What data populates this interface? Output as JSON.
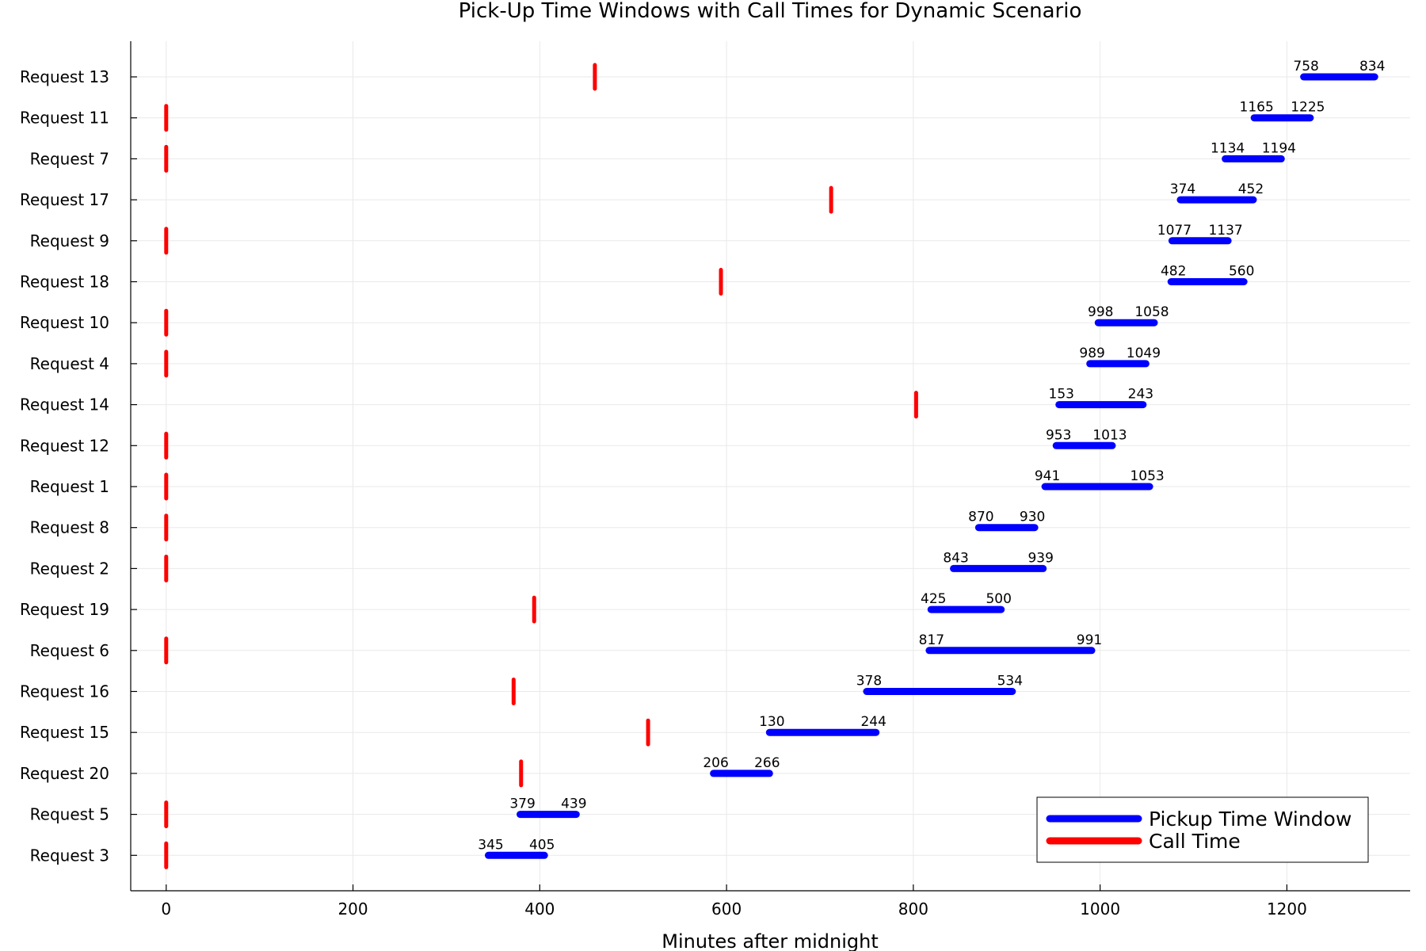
{
  "chart_data": {
    "type": "range-bar",
    "title": "Pick-Up Time Windows with Call Times for Dynamic Scenario",
    "xlabel": "Minutes after midnight",
    "xlim": [
      -38,
      1332
    ],
    "xticks": [
      0,
      200,
      400,
      600,
      800,
      1000,
      1200
    ],
    "grid": true,
    "legend_position": "bottom-right",
    "colors": {
      "window": "#0000ff",
      "call": "#ff0000"
    },
    "legend": [
      {
        "key": "window",
        "label": "Pickup Time Window"
      },
      {
        "key": "call",
        "label": "Call Time"
      }
    ],
    "requests": [
      {
        "label": "Request 13",
        "start": 1218,
        "end": 1294,
        "start_label": "758",
        "end_label": "834",
        "call": 459
      },
      {
        "label": "Request 11",
        "start": 1165,
        "end": 1225,
        "start_label": "1165",
        "end_label": "1225",
        "call": 0
      },
      {
        "label": "Request 7",
        "start": 1134,
        "end": 1194,
        "start_label": "1134",
        "end_label": "1194",
        "call": 0
      },
      {
        "label": "Request 17",
        "start": 1086,
        "end": 1164,
        "start_label": "374",
        "end_label": "452",
        "call": 712
      },
      {
        "label": "Request 9",
        "start": 1077,
        "end": 1137,
        "start_label": "1077",
        "end_label": "1137",
        "call": 0
      },
      {
        "label": "Request 18",
        "start": 1076,
        "end": 1154,
        "start_label": "482",
        "end_label": "560",
        "call": 594
      },
      {
        "label": "Request 10",
        "start": 998,
        "end": 1058,
        "start_label": "998",
        "end_label": "1058",
        "call": 0
      },
      {
        "label": "Request 4",
        "start": 989,
        "end": 1049,
        "start_label": "989",
        "end_label": "1049",
        "call": 0
      },
      {
        "label": "Request 14",
        "start": 956,
        "end": 1046,
        "start_label": "153",
        "end_label": "243",
        "call": 803
      },
      {
        "label": "Request 12",
        "start": 953,
        "end": 1013,
        "start_label": "953",
        "end_label": "1013",
        "call": 0
      },
      {
        "label": "Request 1",
        "start": 941,
        "end": 1053,
        "start_label": "941",
        "end_label": "1053",
        "call": 0
      },
      {
        "label": "Request 8",
        "start": 870,
        "end": 930,
        "start_label": "870",
        "end_label": "930",
        "call": 0
      },
      {
        "label": "Request 2",
        "start": 843,
        "end": 939,
        "start_label": "843",
        "end_label": "939",
        "call": 0
      },
      {
        "label": "Request 19",
        "start": 819,
        "end": 894,
        "start_label": "425",
        "end_label": "500",
        "call": 394
      },
      {
        "label": "Request 6",
        "start": 817,
        "end": 991,
        "start_label": "817",
        "end_label": "991",
        "call": 0
      },
      {
        "label": "Request 16",
        "start": 750,
        "end": 906,
        "start_label": "378",
        "end_label": "534",
        "call": 372
      },
      {
        "label": "Request 15",
        "start": 646,
        "end": 760,
        "start_label": "130",
        "end_label": "244",
        "call": 516
      },
      {
        "label": "Request 20",
        "start": 586,
        "end": 646,
        "start_label": "206",
        "end_label": "266",
        "call": 380
      },
      {
        "label": "Request 5",
        "start": 379,
        "end": 439,
        "start_label": "379",
        "end_label": "439",
        "call": 0
      },
      {
        "label": "Request 3",
        "start": 345,
        "end": 405,
        "start_label": "345",
        "end_label": "405",
        "call": 0
      }
    ]
  }
}
